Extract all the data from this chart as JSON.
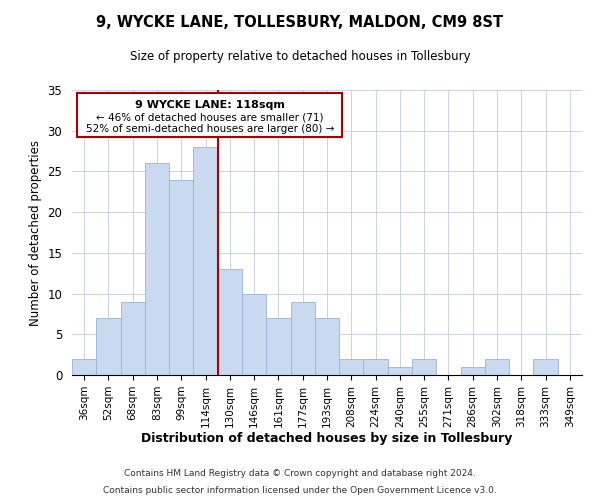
{
  "title": "9, WYCKE LANE, TOLLESBURY, MALDON, CM9 8ST",
  "subtitle": "Size of property relative to detached houses in Tollesbury",
  "xlabel": "Distribution of detached houses by size in Tollesbury",
  "ylabel": "Number of detached properties",
  "footer_line1": "Contains HM Land Registry data © Crown copyright and database right 2024.",
  "footer_line2": "Contains public sector information licensed under the Open Government Licence v3.0.",
  "bin_labels": [
    "36sqm",
    "52sqm",
    "68sqm",
    "83sqm",
    "99sqm",
    "114sqm",
    "130sqm",
    "146sqm",
    "161sqm",
    "177sqm",
    "193sqm",
    "208sqm",
    "224sqm",
    "240sqm",
    "255sqm",
    "271sqm",
    "286sqm",
    "302sqm",
    "318sqm",
    "333sqm",
    "349sqm"
  ],
  "bar_heights": [
    2,
    7,
    9,
    26,
    24,
    28,
    13,
    10,
    7,
    9,
    7,
    2,
    2,
    1,
    2,
    0,
    1,
    2,
    0,
    2,
    0
  ],
  "bar_color": "#c9daf0",
  "bar_edge_color": "#9ab4d8",
  "vline_color": "#aa0000",
  "vline_x": 5.5,
  "ylim": [
    0,
    35
  ],
  "yticks": [
    0,
    5,
    10,
    15,
    20,
    25,
    30,
    35
  ],
  "annotation_title": "9 WYCKE LANE: 118sqm",
  "annotation_line1": "← 46% of detached houses are smaller (71)",
  "annotation_line2": "52% of semi-detached houses are larger (80) →"
}
